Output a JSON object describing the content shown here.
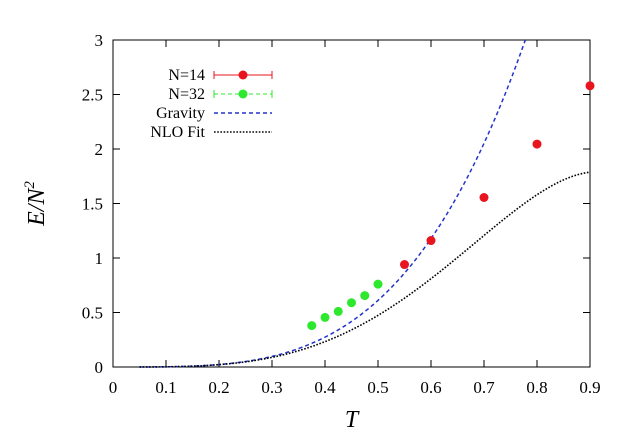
{
  "chart_data": {
    "type": "scatter",
    "xlabel": "T",
    "ylabel": "E/N",
    "ylabel_superscript": "2",
    "xlim": [
      0,
      0.9
    ],
    "ylim": [
      0,
      3
    ],
    "grid": false,
    "legend_placement": "top-left",
    "x_ticks": [
      "0",
      "0.1",
      "0.2",
      "0.3",
      "0.4",
      "0.5",
      "0.6",
      "0.7",
      "0.8",
      "0.9"
    ],
    "y_ticks": [
      "0",
      "0.5",
      "1",
      "1.5",
      "2",
      "2.5",
      "3"
    ],
    "series": [
      {
        "name": "N=14",
        "kind": "points-with-errorbars",
        "color": "#e8141e",
        "x": [
          0.55,
          0.6,
          0.7,
          0.8,
          0.9
        ],
        "y": [
          0.94,
          1.16,
          1.555,
          2.045,
          2.58
        ]
      },
      {
        "name": "N=32",
        "kind": "points-with-errorbars",
        "color": "#2ee82e",
        "x": [
          0.375,
          0.4,
          0.425,
          0.45,
          0.475,
          0.5
        ],
        "y": [
          0.38,
          0.455,
          0.51,
          0.59,
          0.655,
          0.76
        ]
      },
      {
        "name": "Gravity",
        "kind": "dashed-line",
        "color": "#2233cc",
        "formula": "7.41 * T^3.6"
      },
      {
        "name": "NLO Fit",
        "kind": "dotted-line",
        "color": "#000000",
        "formula": "7.41*T^3.6 - 5.8*T^5.4"
      }
    ]
  }
}
